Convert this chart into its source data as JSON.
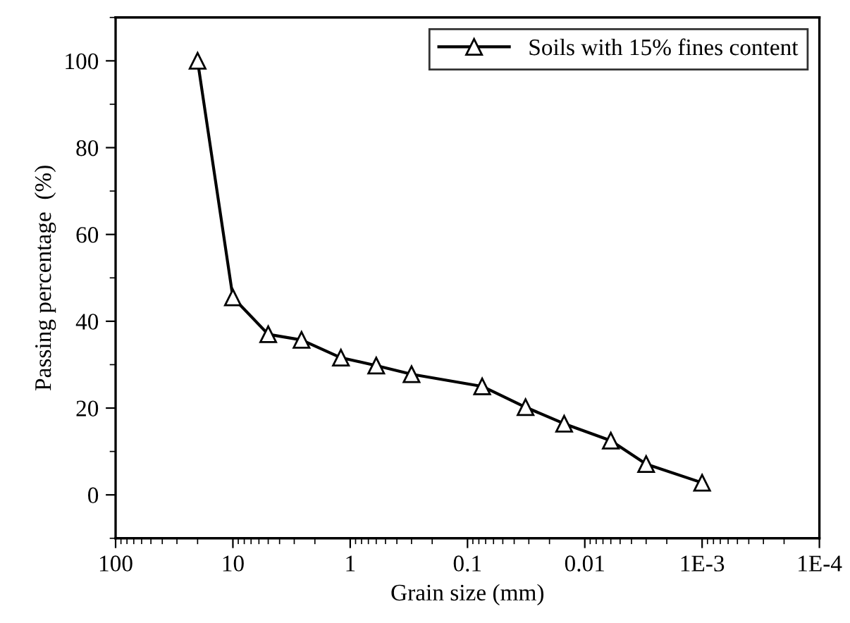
{
  "chart_data": {
    "type": "line",
    "xlabel": "Grain size (mm)",
    "ylabel": "Passing percentage  (%)",
    "x": [
      20,
      10,
      5,
      2.6,
      1.2,
      0.6,
      0.3,
      0.075,
      0.032,
      0.015,
      0.006,
      0.003,
      0.001
    ],
    "series": [
      {
        "name": "Soils with 15% fines content",
        "color": "#000000",
        "values": [
          100,
          45.5,
          37,
          35.7,
          31.6,
          29.8,
          27.8,
          25,
          20.2,
          16.4,
          12.5,
          7.1,
          2.8
        ]
      }
    ],
    "log": "x",
    "xlim": [
      100,
      0.0001
    ],
    "xticks": [
      100,
      10,
      1,
      0.1,
      0.01,
      {
        "value": 0.001,
        "label": "1E-3"
      },
      {
        "value": 0.0001,
        "label": "1E-4"
      }
    ],
    "ylim": [
      -10,
      110
    ],
    "yticks": [
      0,
      20,
      40,
      60,
      80,
      100
    ],
    "marker": "triangle",
    "line_style": "solid",
    "grid": false,
    "legend": "top right"
  }
}
